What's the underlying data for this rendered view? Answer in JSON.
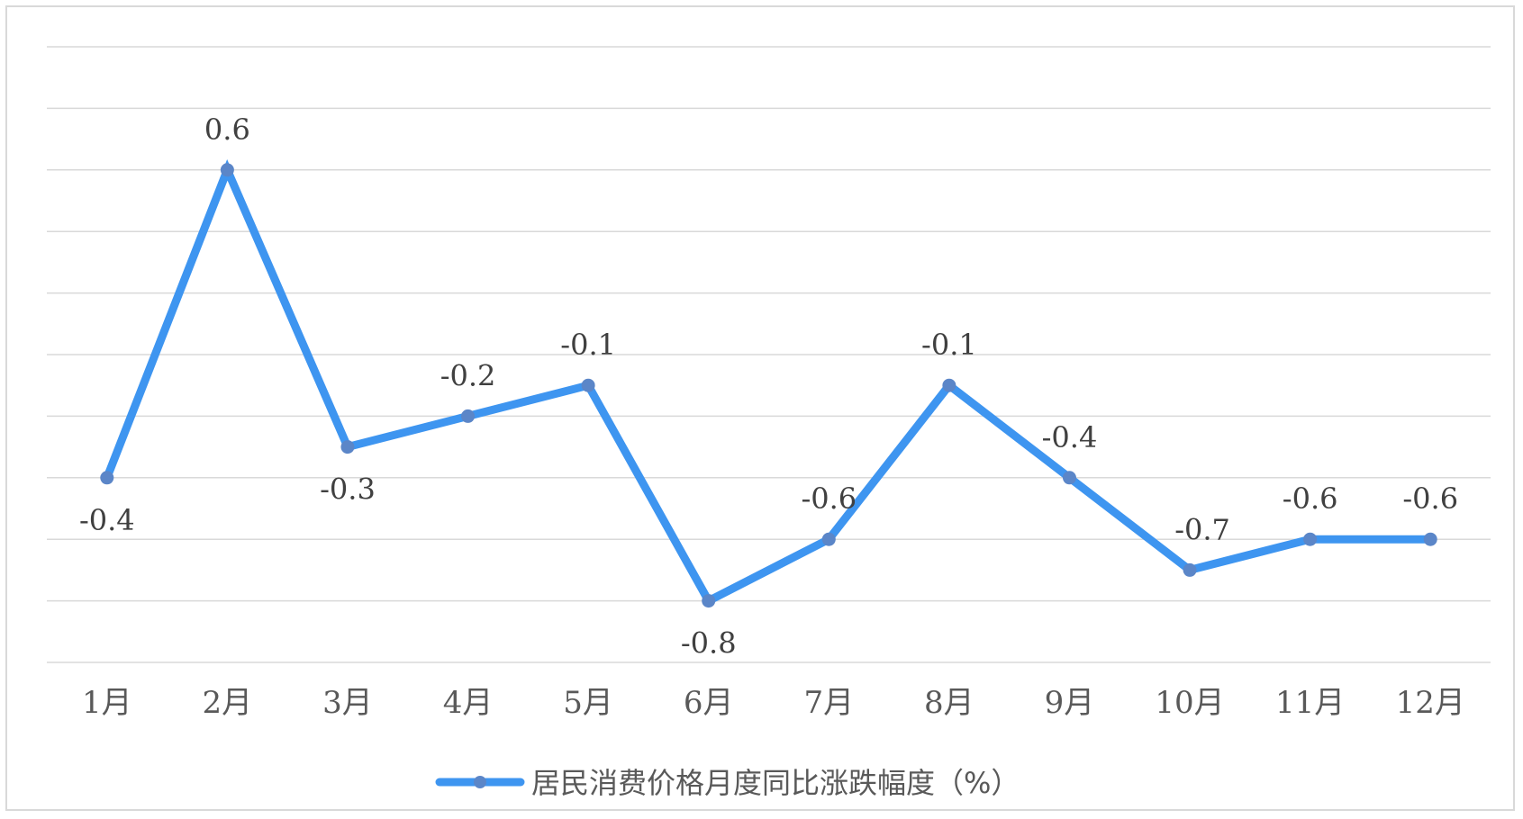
{
  "chart_data": {
    "type": "line",
    "categories": [
      "1月",
      "2月",
      "3月",
      "4月",
      "5月",
      "6月",
      "7月",
      "8月",
      "9月",
      "10月",
      "11月",
      "12月"
    ],
    "series": [
      {
        "name": "居民消费价格月度同比涨跌幅度（%）",
        "values": [
          -0.4,
          0.6,
          -0.3,
          -0.2,
          -0.1,
          -0.8,
          -0.6,
          -0.1,
          -0.4,
          -0.7,
          -0.6,
          -0.6
        ],
        "color": "#3e95f0",
        "marker_color": "#5b86c8"
      }
    ],
    "data_label_text": [
      "-0.4",
      "0.6",
      "-0.3",
      "-0.2",
      "-0.1",
      "-0.8",
      "-0.6",
      "-0.1",
      "-0.4",
      "-0.7",
      "-0.6",
      "-0.6"
    ],
    "ylim": [
      -1.0,
      1.0
    ],
    "y_gridline_step": 0.2,
    "grid": true,
    "y_axis_labels_shown": false,
    "legend_position": "bottom",
    "gridline_color": "#d9d9d9"
  }
}
